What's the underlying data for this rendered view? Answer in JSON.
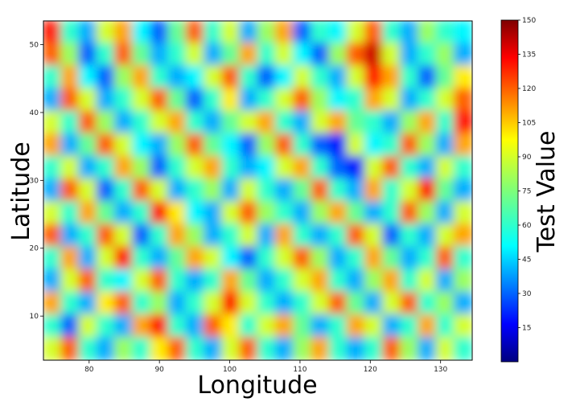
{
  "chart_data": {
    "type": "heatmap",
    "xlabel": "Longitude",
    "ylabel": "Latitude",
    "xlim": [
      73.5,
      134.5
    ],
    "ylim": [
      3.5,
      53.5
    ],
    "x_ticks": [
      80,
      90,
      100,
      110,
      120,
      130
    ],
    "y_ticks": [
      10,
      20,
      30,
      40,
      50
    ],
    "colorbar": {
      "label": "Test Value",
      "range": [
        0,
        150
      ],
      "ticks": [
        15,
        30,
        45,
        60,
        75,
        90,
        105,
        120,
        135,
        150
      ],
      "colormap": "jet"
    },
    "grid": false,
    "legend": "none",
    "note_values": "value field estimated on a coarse grid (rows from top lat ~52 to bottom lat ~5, cols from lon ~74 to ~134)",
    "field": [
      [
        130,
        60,
        40,
        90,
        110,
        50,
        30,
        70,
        120,
        60,
        90,
        40,
        80,
        110,
        30,
        60,
        50,
        90,
        120,
        60,
        40,
        80,
        60,
        50
      ],
      [
        120,
        80,
        30,
        60,
        120,
        70,
        40,
        60,
        90,
        40,
        70,
        110,
        60,
        90,
        50,
        30,
        80,
        120,
        140,
        90,
        40,
        60,
        80,
        40
      ],
      [
        60,
        110,
        50,
        30,
        80,
        110,
        60,
        40,
        50,
        90,
        120,
        60,
        30,
        50,
        90,
        60,
        40,
        90,
        130,
        110,
        60,
        30,
        70,
        100
      ],
      [
        40,
        120,
        90,
        40,
        60,
        90,
        120,
        70,
        30,
        60,
        100,
        40,
        60,
        90,
        120,
        80,
        50,
        60,
        110,
        90,
        40,
        60,
        90,
        120
      ],
      [
        90,
        60,
        120,
        80,
        40,
        60,
        90,
        110,
        60,
        40,
        70,
        90,
        110,
        60,
        40,
        90,
        110,
        70,
        60,
        40,
        80,
        110,
        60,
        130
      ],
      [
        110,
        40,
        70,
        120,
        90,
        50,
        40,
        80,
        120,
        70,
        50,
        30,
        80,
        120,
        60,
        30,
        20,
        90,
        50,
        60,
        120,
        80,
        40,
        110
      ],
      [
        60,
        90,
        40,
        60,
        110,
        80,
        30,
        60,
        90,
        110,
        60,
        40,
        50,
        90,
        110,
        60,
        30,
        20,
        90,
        120,
        60,
        40,
        90,
        60
      ],
      [
        40,
        120,
        90,
        30,
        60,
        120,
        90,
        40,
        60,
        80,
        40,
        90,
        60,
        40,
        70,
        120,
        60,
        40,
        110,
        60,
        90,
        130,
        70,
        40
      ],
      [
        90,
        60,
        110,
        70,
        40,
        60,
        130,
        100,
        50,
        40,
        90,
        120,
        80,
        60,
        40,
        80,
        110,
        70,
        40,
        60,
        120,
        80,
        40,
        90
      ],
      [
        120,
        40,
        60,
        120,
        90,
        30,
        60,
        110,
        80,
        40,
        60,
        90,
        40,
        110,
        60,
        40,
        60,
        120,
        90,
        30,
        60,
        40,
        90,
        110
      ],
      [
        60,
        110,
        40,
        90,
        130,
        60,
        40,
        70,
        110,
        90,
        50,
        30,
        60,
        90,
        120,
        80,
        40,
        60,
        110,
        70,
        40,
        60,
        120,
        60
      ],
      [
        40,
        90,
        120,
        60,
        50,
        90,
        120,
        60,
        40,
        60,
        110,
        70,
        40,
        60,
        90,
        110,
        60,
        40,
        80,
        110,
        60,
        90,
        40,
        80
      ],
      [
        110,
        60,
        40,
        100,
        120,
        60,
        80,
        40,
        60,
        90,
        130,
        90,
        60,
        40,
        60,
        90,
        120,
        70,
        40,
        90,
        120,
        60,
        80,
        40
      ],
      [
        60,
        30,
        90,
        60,
        40,
        110,
        130,
        60,
        40,
        120,
        100,
        60,
        90,
        110,
        70,
        40,
        60,
        110,
        90,
        40,
        60,
        110,
        60,
        90
      ],
      [
        90,
        120,
        60,
        40,
        80,
        60,
        100,
        120,
        60,
        40,
        90,
        120,
        60,
        40,
        80,
        110,
        60,
        40,
        60,
        120,
        80,
        40,
        90,
        60
      ]
    ]
  }
}
